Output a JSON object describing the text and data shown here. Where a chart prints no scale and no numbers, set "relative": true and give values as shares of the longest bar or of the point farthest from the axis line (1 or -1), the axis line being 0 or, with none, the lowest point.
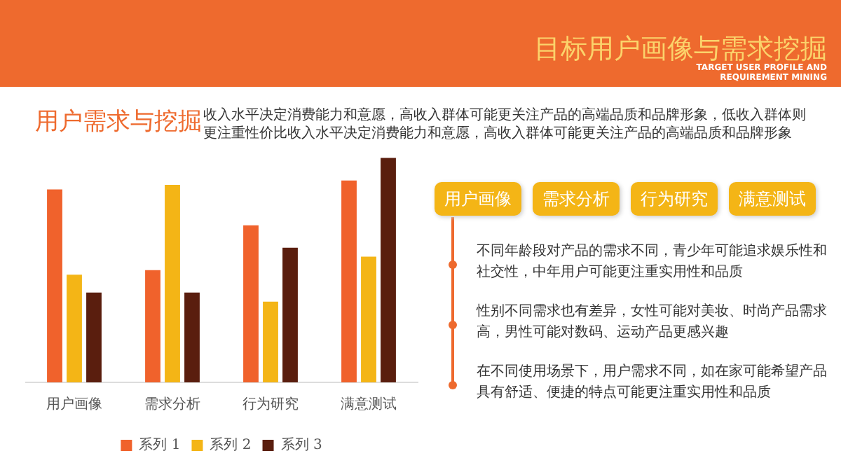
{
  "chart_data": {
    "type": "bar",
    "title": "目标用户画像与需求挖掘",
    "subtitle": "TARGET USER PROFILE AND REQUIREMENT MINING",
    "categories": [
      "用户画像",
      "需求分析",
      "行为研究",
      "满意测试"
    ],
    "series": [
      {
        "name": "系列 1",
        "color": "#f0622c",
        "values": [
          0.86,
          0.5,
          0.7,
          0.9
        ]
      },
      {
        "name": "系列 2",
        "color": "#f4b516",
        "values": [
          0.48,
          0.88,
          0.36,
          0.56
        ]
      },
      {
        "name": "系列 3",
        "color": "#5a1e0e",
        "values": [
          0.4,
          0.4,
          0.6,
          1
        ]
      }
    ],
    "relative": true,
    "legend": "bottom",
    "grid": false,
    "annotations": [
      "用户需求与挖掘",
      "收入水平决定消费能力和意愿，高收入群体可能更关注产品的高端品质和品牌形象，低收入群体则更注重性价比收入水平决定消费能力和意愿，高收入群体可能更关注产品的高端品质和品牌形象",
      "用户画像",
      "需求分析",
      "行为研究",
      "满意测试",
      "不同年龄段对产品的需求不同，青少年可能追求娱乐性和社交性，中年用户可能更注重实用性和品质",
      "性别不同需求也有差异，女性可能对美妆、时尚产品需求高，男性可能对数码、运动产品更感兴趣",
      "在不同使用场景下，用户需求不同，如在家可能希望产品具有舒适、便捷的特点可能更注重实用性和品质"
    ]
  }
}
